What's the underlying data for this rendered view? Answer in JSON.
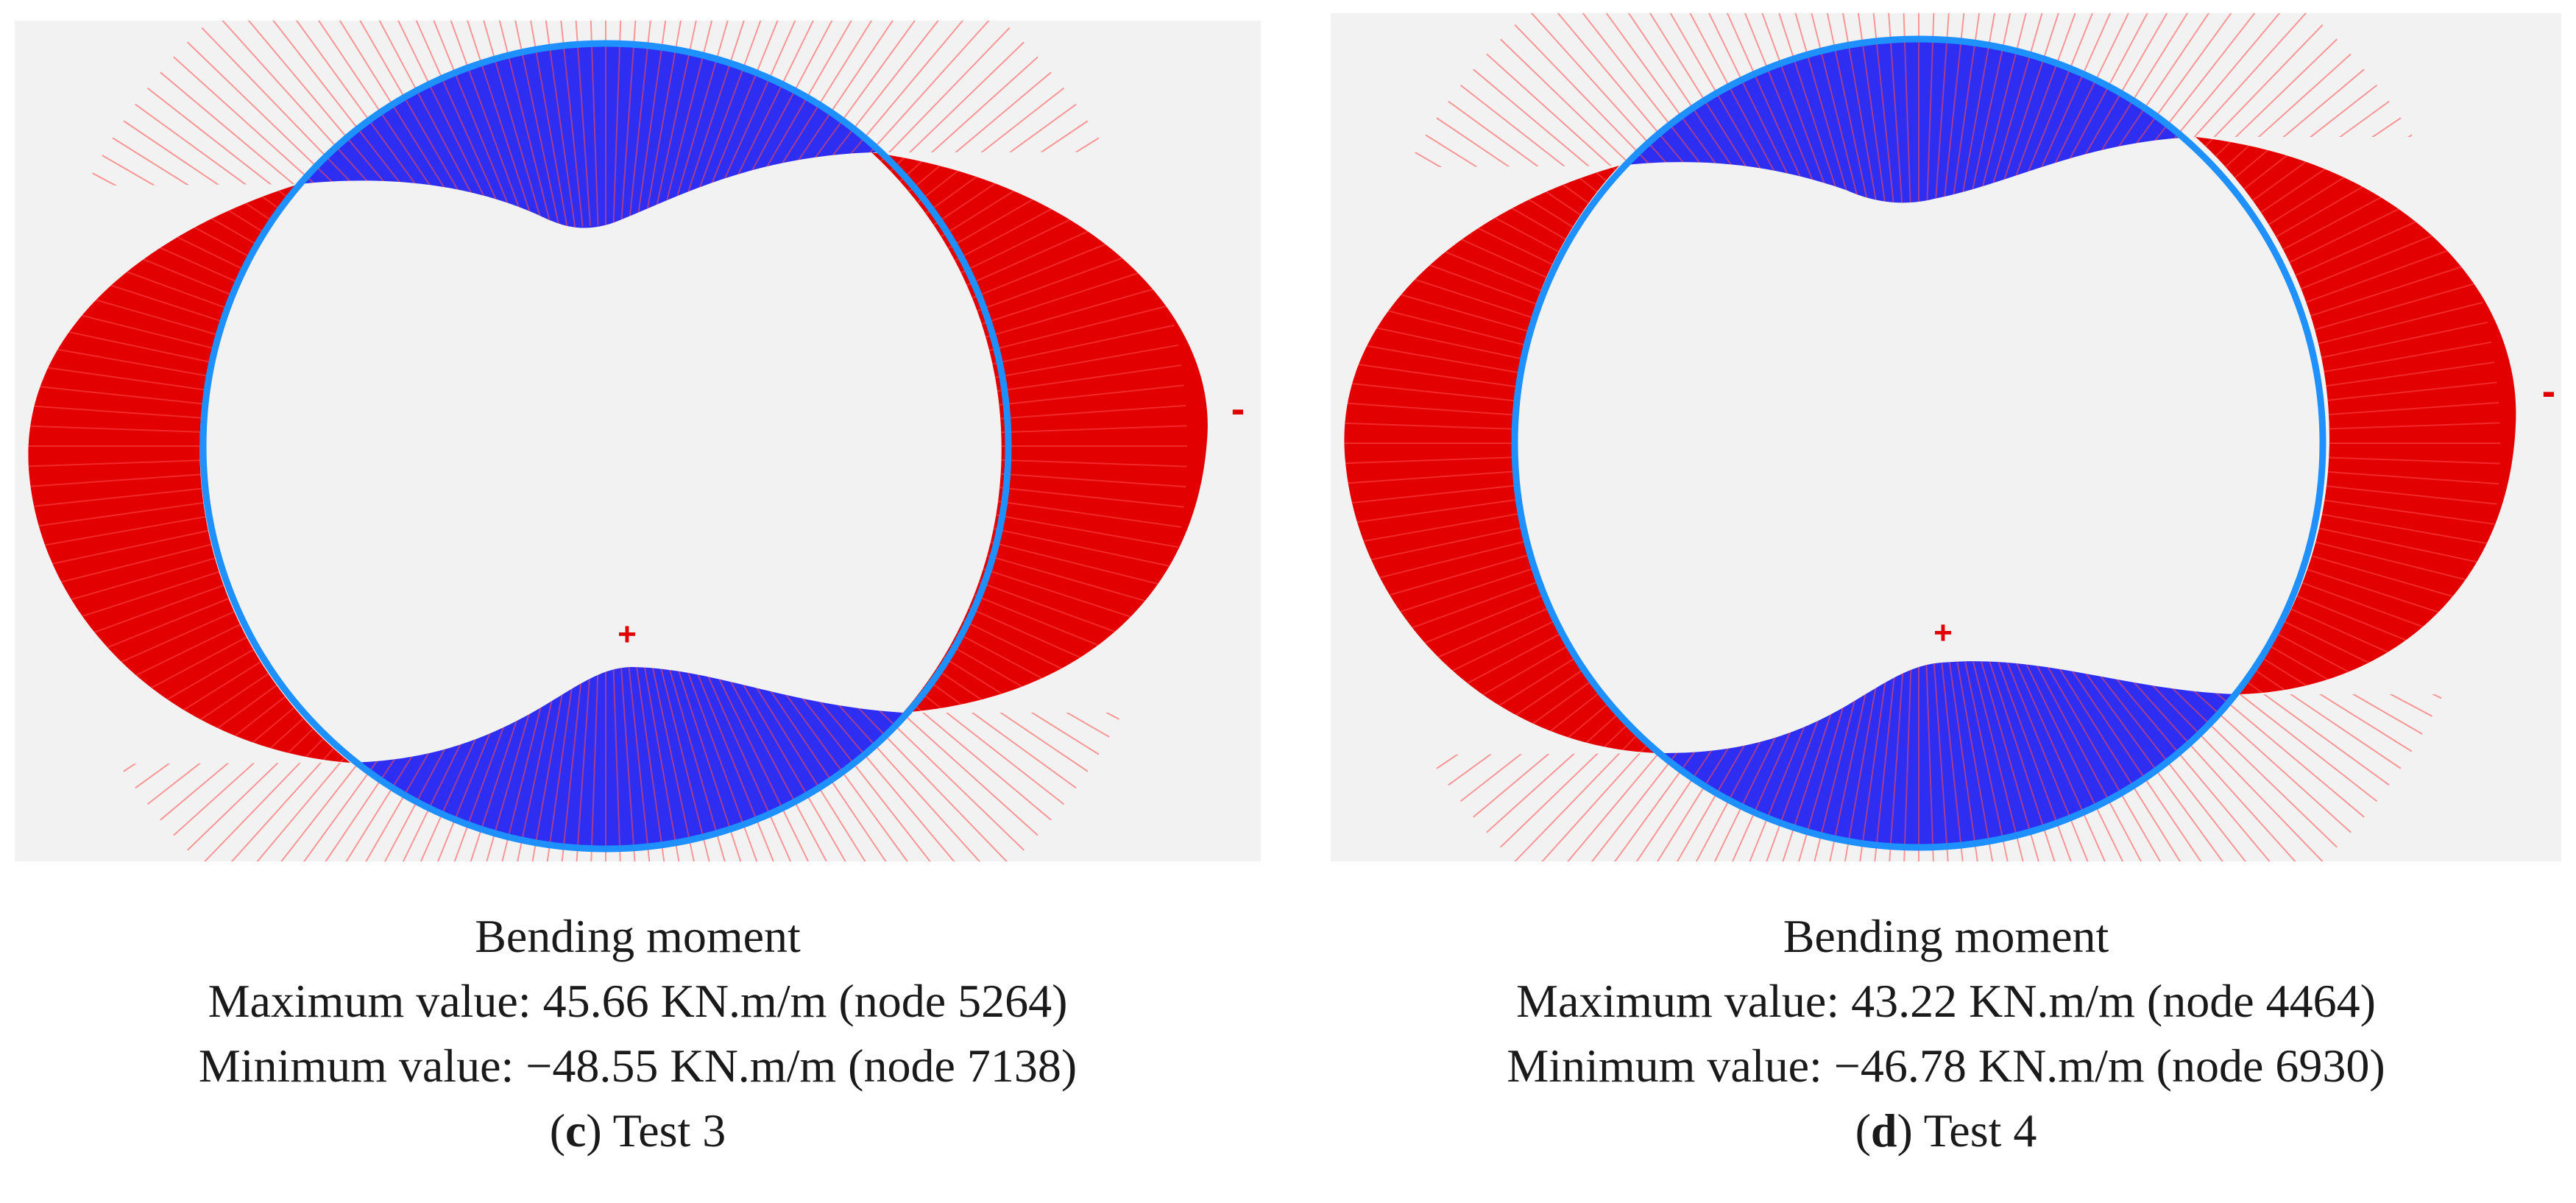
{
  "colors": {
    "background": "#f2f2f2",
    "positive_fill": "#2e2ef2",
    "negative_fill": "#e20000",
    "ring": "#1e90ff",
    "hatch": "#ff4b4b",
    "sign_marker": "#e00000"
  },
  "panels": [
    {
      "id": "c",
      "positive_sign": "+",
      "negative_sign": "-",
      "caption": {
        "title": "Bending moment",
        "max_line": "Maximum value: 45.66 KN.m/m (node 5264)",
        "min_line": "Minimum value: −48.55 KN.m/m (node 7138)",
        "label_open": "(",
        "label_letter": "c",
        "label_close": ") Test 3"
      }
    },
    {
      "id": "d",
      "positive_sign": "+",
      "negative_sign": "-",
      "caption": {
        "title": "Bending moment",
        "max_line": "Maximum value: 43.22 KN.m/m (node 4464)",
        "min_line": "Minimum value: −46.78 KN.m/m (node 6930)",
        "label_open": "(",
        "label_letter": "d",
        "label_close": ") Test 4"
      }
    }
  ]
}
